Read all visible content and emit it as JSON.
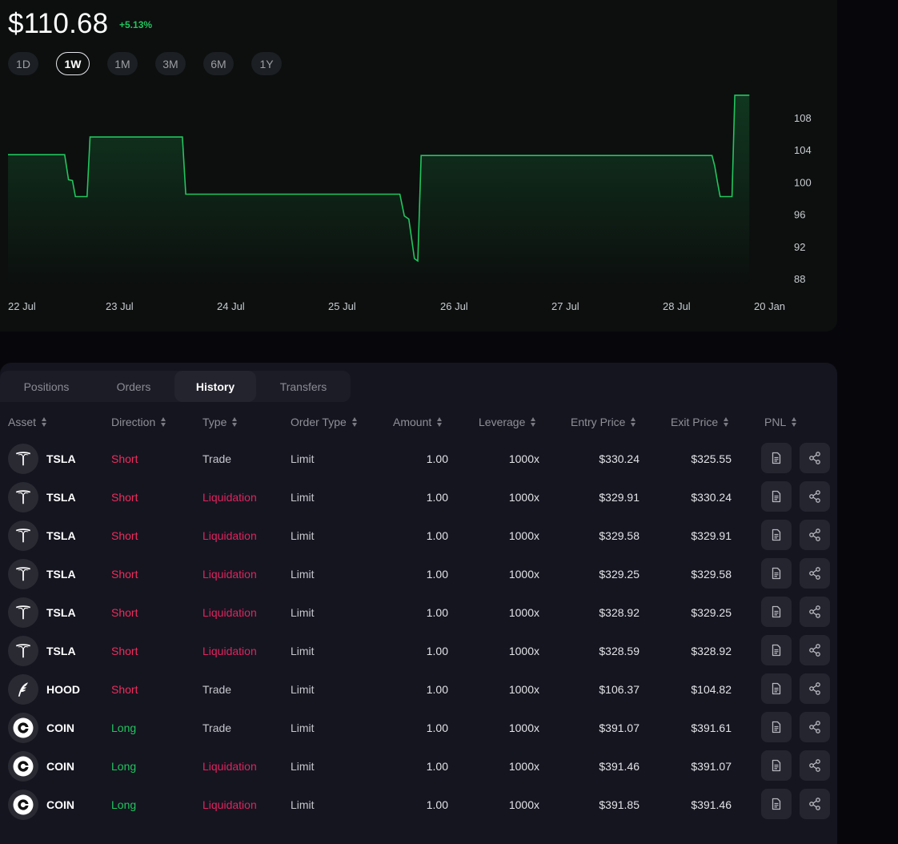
{
  "price": "$110.68",
  "change": "+5.13%",
  "ranges": [
    "1D",
    "1W",
    "1M",
    "3M",
    "6M",
    "1Y"
  ],
  "active_range": "1W",
  "chart_data": {
    "type": "area",
    "color": "#22c55e",
    "x_labels": [
      "22 Jul",
      "23 Jul",
      "24 Jul",
      "25 Jul",
      "26 Jul",
      "27 Jul",
      "28 Jul",
      "20 Jan"
    ],
    "y_ticks": [
      "108",
      "104",
      "100",
      "96",
      "92",
      "88"
    ],
    "ylim": [
      88,
      110
    ],
    "series": [
      {
        "values": [
          {
            "x": 0.0,
            "y": 103.4
          },
          {
            "x": 0.58,
            "y": 103.4
          },
          {
            "x": 0.62,
            "y": 100.3
          },
          {
            "x": 0.66,
            "y": 100.2
          },
          {
            "x": 0.69,
            "y": 98.2
          },
          {
            "x": 0.81,
            "y": 98.2
          },
          {
            "x": 0.84,
            "y": 105.6
          },
          {
            "x": 1.69,
            "y": 105.6
          },
          {
            "x": 1.72,
            "y": 98.5
          },
          {
            "x": 3.64,
            "y": 98.5
          },
          {
            "x": 3.68,
            "y": 95.8
          },
          {
            "x": 3.72,
            "y": 95.4
          },
          {
            "x": 3.77,
            "y": 90.5
          },
          {
            "x": 3.8,
            "y": 90.2
          },
          {
            "x": 3.83,
            "y": 103.3
          },
          {
            "x": 6.54,
            "y": 103.3
          },
          {
            "x": 6.57,
            "y": 102.0
          },
          {
            "x": 6.6,
            "y": 100.0
          },
          {
            "x": 6.63,
            "y": 98.2
          },
          {
            "x": 6.76,
            "y": 98.2
          },
          {
            "x": 6.79,
            "y": 110.8
          },
          {
            "x": 6.95,
            "y": 110.8
          }
        ]
      }
    ]
  },
  "tabs": [
    "Positions",
    "Orders",
    "History",
    "Transfers"
  ],
  "active_tab": "History",
  "columns": {
    "asset": "Asset",
    "direction": "Direction",
    "type": "Type",
    "order_type": "Order Type",
    "amount": "Amount",
    "leverage": "Leverage",
    "entry": "Entry Price",
    "exit": "Exit Price",
    "pnl": "PNL"
  },
  "rows": [
    {
      "asset": "TSLA",
      "logo": "tesla-logo-icon",
      "direction": "Short",
      "type": "Trade",
      "order_type": "Limit",
      "amount": "1.00",
      "leverage": "1000x",
      "entry": "$330.24",
      "exit": "$325.55"
    },
    {
      "asset": "TSLA",
      "logo": "tesla-logo-icon",
      "direction": "Short",
      "type": "Liquidation",
      "order_type": "Limit",
      "amount": "1.00",
      "leverage": "1000x",
      "entry": "$329.91",
      "exit": "$330.24"
    },
    {
      "asset": "TSLA",
      "logo": "tesla-logo-icon",
      "direction": "Short",
      "type": "Liquidation",
      "order_type": "Limit",
      "amount": "1.00",
      "leverage": "1000x",
      "entry": "$329.58",
      "exit": "$329.91"
    },
    {
      "asset": "TSLA",
      "logo": "tesla-logo-icon",
      "direction": "Short",
      "type": "Liquidation",
      "order_type": "Limit",
      "amount": "1.00",
      "leverage": "1000x",
      "entry": "$329.25",
      "exit": "$329.58"
    },
    {
      "asset": "TSLA",
      "logo": "tesla-logo-icon",
      "direction": "Short",
      "type": "Liquidation",
      "order_type": "Limit",
      "amount": "1.00",
      "leverage": "1000x",
      "entry": "$328.92",
      "exit": "$329.25"
    },
    {
      "asset": "TSLA",
      "logo": "tesla-logo-icon",
      "direction": "Short",
      "type": "Liquidation",
      "order_type": "Limit",
      "amount": "1.00",
      "leverage": "1000x",
      "entry": "$328.59",
      "exit": "$328.92"
    },
    {
      "asset": "HOOD",
      "logo": "robinhood-feather-icon",
      "direction": "Short",
      "type": "Trade",
      "order_type": "Limit",
      "amount": "1.00",
      "leverage": "1000x",
      "entry": "$106.37",
      "exit": "$104.82"
    },
    {
      "asset": "COIN",
      "logo": "coinbase-logo-icon",
      "direction": "Long",
      "type": "Trade",
      "order_type": "Limit",
      "amount": "1.00",
      "leverage": "1000x",
      "entry": "$391.07",
      "exit": "$391.61"
    },
    {
      "asset": "COIN",
      "logo": "coinbase-logo-icon",
      "direction": "Long",
      "type": "Liquidation",
      "order_type": "Limit",
      "amount": "1.00",
      "leverage": "1000x",
      "entry": "$391.46",
      "exit": "$391.07"
    },
    {
      "asset": "COIN",
      "logo": "coinbase-logo-icon",
      "direction": "Long",
      "type": "Liquidation",
      "order_type": "Limit",
      "amount": "1.00",
      "leverage": "1000x",
      "entry": "$391.85",
      "exit": "$391.46"
    }
  ],
  "row_actions": [
    "document-icon",
    "share-icon"
  ]
}
